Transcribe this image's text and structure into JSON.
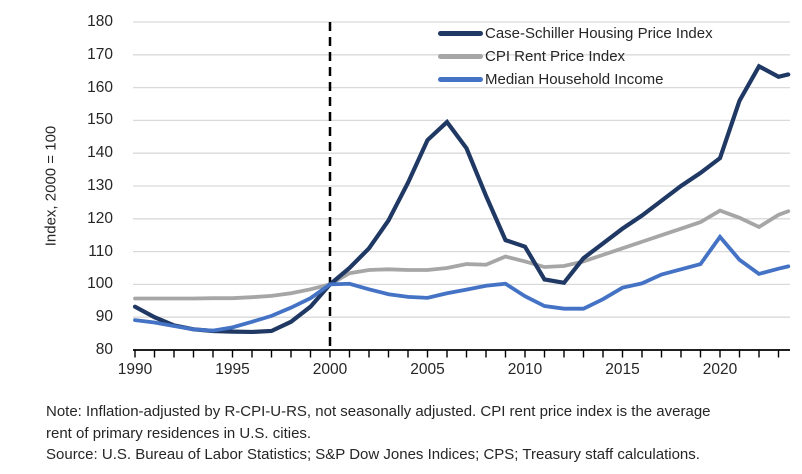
{
  "chart_data": {
    "type": "line",
    "title": "",
    "xlabel": "",
    "ylabel": "Index, 2000 = 100",
    "xlim": [
      1990,
      2023.6
    ],
    "ylim": [
      80,
      180
    ],
    "yticks": [
      80,
      90,
      100,
      110,
      120,
      130,
      140,
      150,
      160,
      170,
      180
    ],
    "xticks": [
      1990,
      1995,
      2000,
      2005,
      2010,
      2015,
      2020
    ],
    "grid": "horizontal",
    "grid_color": "#D9D9D9",
    "axis_color": "#000000",
    "legend_position": "top-right-inside",
    "reference_line": {
      "style": "dashed-vertical",
      "x": 2000,
      "color": "#000000"
    },
    "x": [
      1990,
      1991,
      1992,
      1993,
      1994,
      1995,
      1996,
      1997,
      1998,
      1999,
      2000,
      2001,
      2002,
      2003,
      2004,
      2005,
      2006,
      2007,
      2008,
      2009,
      2010,
      2011,
      2012,
      2013,
      2014,
      2015,
      2016,
      2017,
      2018,
      2019,
      2020,
      2021,
      2022,
      2023,
      2023.5
    ],
    "series": [
      {
        "name": "Case-Schiller Housing Price Index",
        "color": "#1F3864",
        "values": [
          93.2,
          90,
          87.5,
          86.3,
          85.8,
          85.6,
          85.5,
          85.8,
          88.6,
          93.2,
          100,
          105,
          111,
          119.5,
          131,
          144,
          149.5,
          141.5,
          127,
          113.5,
          111.5,
          101.5,
          100.5,
          108,
          112.5,
          117,
          121,
          125.5,
          130,
          134,
          138.5,
          156,
          166.5,
          163.3,
          164
        ]
      },
      {
        "name": "CPI Rent Price Index",
        "color": "#A6A6A6",
        "values": [
          95.7,
          95.7,
          95.7,
          95.7,
          95.8,
          95.8,
          96.1,
          96.5,
          97.3,
          98.5,
          100,
          103.4,
          104.4,
          104.6,
          104.4,
          104.4,
          105,
          106.2,
          106,
          108.5,
          107,
          105.3,
          105.6,
          107,
          109,
          111,
          113,
          115,
          117,
          119,
          122.5,
          120.3,
          117.5,
          121.2,
          122.3
        ]
      },
      {
        "name": "Median Household Income",
        "color": "#4472C4",
        "values": [
          89.1,
          88.4,
          87.3,
          86.3,
          85.9,
          86.9,
          88.6,
          90.4,
          92.9,
          95.8,
          100,
          100.2,
          98.5,
          97,
          96.2,
          95.9,
          97.3,
          98.4,
          99.6,
          100.2,
          96.4,
          93.4,
          92.6,
          92.6,
          95.5,
          99,
          100.3,
          103,
          104.6,
          106.2,
          114.5,
          107.5,
          103.2,
          104.8,
          105.5
        ]
      }
    ]
  },
  "notes": {
    "note_line1": "Note: Inflation-adjusted by R-CPI-U-RS, not seasonally adjusted. CPI rent price index is the average",
    "note_line2": "rent of primary residences in U.S. cities.",
    "source": "Source: U.S. Bureau of Labor Statistics; S&P Dow Jones Indices; CPS; Treasury staff calculations."
  }
}
